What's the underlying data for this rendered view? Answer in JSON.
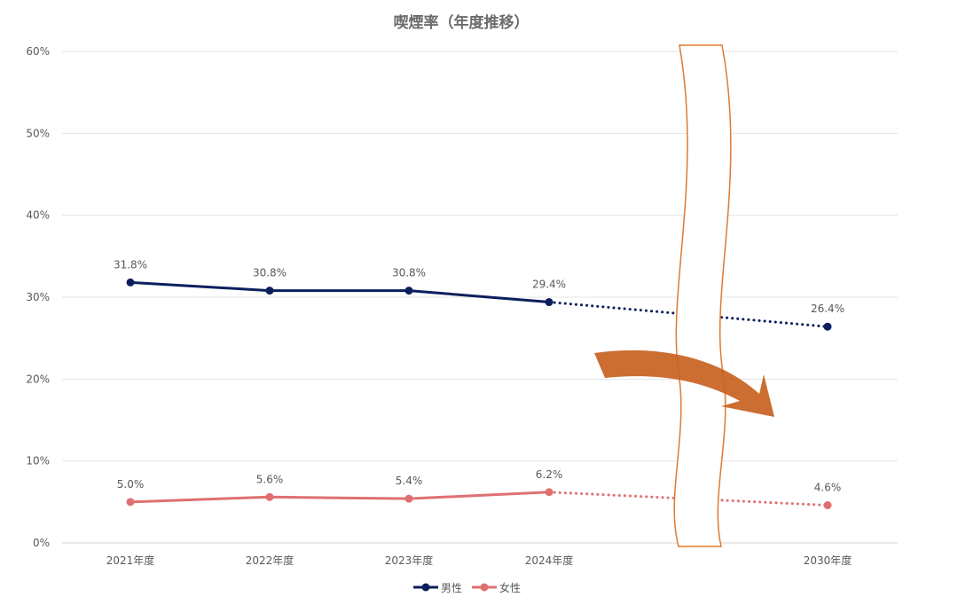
{
  "chart_data": {
    "type": "line",
    "title": "喫煙率（年度推移）",
    "categories": [
      "2021年度",
      "2022年度",
      "2023年度",
      "2024年度",
      "2030年度"
    ],
    "ylim": [
      0,
      60
    ],
    "yticks": [
      "0%",
      "10%",
      "20%",
      "30%",
      "40%",
      "50%",
      "60%"
    ],
    "grid": true,
    "legend_position": "bottom",
    "series": [
      {
        "name": "男性",
        "color": "#0b1f5c",
        "values": [
          31.8,
          30.8,
          30.8,
          29.4,
          26.4
        ],
        "labels": [
          "31.8%",
          "30.8%",
          "30.8%",
          "29.4%",
          "26.4%"
        ]
      },
      {
        "name": "女性",
        "color": "#e07070",
        "values": [
          5.0,
          5.6,
          5.4,
          6.2,
          4.6
        ],
        "labels": [
          "5.0%",
          "5.6%",
          "5.4%",
          "6.2%",
          "4.6%"
        ]
      }
    ],
    "annotations": {
      "axis_break_color": "#e07a2e",
      "arrow_color": "#c8621f",
      "projected_segment": "dotted"
    }
  }
}
